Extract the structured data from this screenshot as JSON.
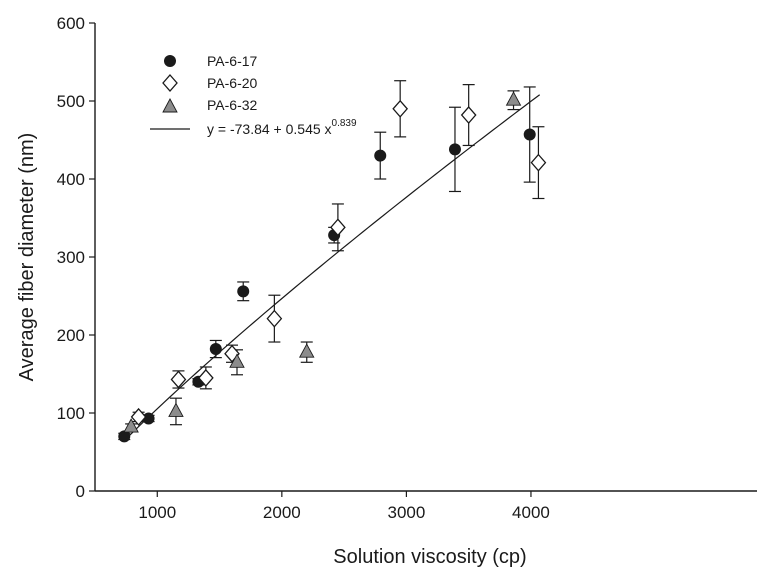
{
  "chart_data": {
    "type": "scatter",
    "xlabel": "Solution viscosity (cp)",
    "ylabel": "Average fiber diameter (nm)",
    "xlim": [
      500,
      4500
    ],
    "ylim": [
      0,
      600
    ],
    "x_ticks": [
      1000,
      2000,
      3000,
      4000
    ],
    "y_ticks": [
      0,
      100,
      200,
      300,
      400,
      500,
      600
    ],
    "legend_position": "top-left",
    "series": [
      {
        "name": "PA-6-17",
        "marker": "filled-circle",
        "color": "#1a1a1a",
        "points": [
          {
            "x": 735,
            "y": 70,
            "err": 4
          },
          {
            "x": 930,
            "y": 93,
            "err": 4
          },
          {
            "x": 1330,
            "y": 140,
            "err": 4
          },
          {
            "x": 1470,
            "y": 182,
            "err": 11
          },
          {
            "x": 1690,
            "y": 256,
            "err": 12
          },
          {
            "x": 2420,
            "y": 328,
            "err": 10
          },
          {
            "x": 2790,
            "y": 430,
            "err": 30
          },
          {
            "x": 3390,
            "y": 438,
            "err": 54
          },
          {
            "x": 3990,
            "y": 457,
            "err": 61
          }
        ]
      },
      {
        "name": "PA-6-20",
        "marker": "open-diamond",
        "color": "#1a1a1a",
        "points": [
          {
            "x": 850,
            "y": 95,
            "err": 6
          },
          {
            "x": 1170,
            "y": 143,
            "err": 11
          },
          {
            "x": 1390,
            "y": 145,
            "err": 14
          },
          {
            "x": 1600,
            "y": 176,
            "err": 11
          },
          {
            "x": 1940,
            "y": 221,
            "err": 30
          },
          {
            "x": 2450,
            "y": 338,
            "err": 30
          },
          {
            "x": 2950,
            "y": 490,
            "err": 36
          },
          {
            "x": 3500,
            "y": 482,
            "err": 39
          },
          {
            "x": 4060,
            "y": 421,
            "err": 46
          }
        ]
      },
      {
        "name": "PA-6-32",
        "marker": "gray-triangle",
        "color": "#8c8c8c",
        "points": [
          {
            "x": 790,
            "y": 82,
            "err": 4
          },
          {
            "x": 1150,
            "y": 102,
            "err": 17
          },
          {
            "x": 1640,
            "y": 165,
            "err": 16
          },
          {
            "x": 2200,
            "y": 178,
            "err": 13
          },
          {
            "x": 3860,
            "y": 501,
            "err": 12
          }
        ]
      }
    ],
    "fit": {
      "label": "y = -73.84 + 0.545 x",
      "exponent_label": "0.839",
      "a": -73.84,
      "b": 0.545,
      "c": 0.839,
      "x_range": [
        730,
        4070
      ]
    }
  }
}
